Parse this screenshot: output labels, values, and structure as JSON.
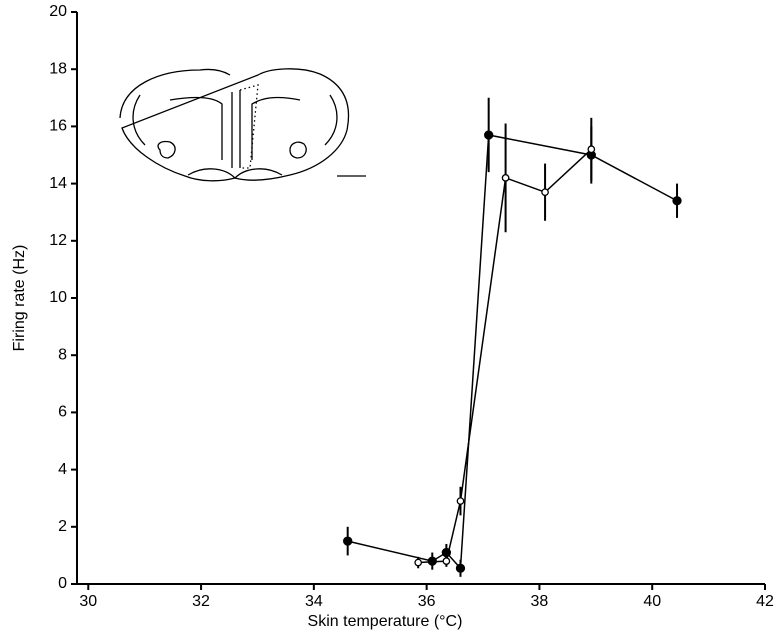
{
  "chart_data": {
    "type": "scatter-line",
    "x_label": "Skin temperature (°C)",
    "y_label": "Firing rate (Hz)",
    "xlim": [
      29.8,
      42
    ],
    "xticks": [
      30,
      32,
      34,
      36,
      38,
      40,
      42
    ],
    "ylim": [
      0,
      20
    ],
    "yticks": [
      0,
      2,
      4,
      6,
      8,
      10,
      12,
      14,
      16,
      18,
      20
    ],
    "series": [
      {
        "marker": "filled",
        "color": "#000000",
        "x": [
          34.6,
          36.1,
          36.35,
          36.6,
          37.1,
          38.92,
          40.44
        ],
        "values": [
          1.5,
          0.8,
          1.1,
          0.55,
          15.7,
          15.0,
          13.4
        ],
        "errors": [
          0.5,
          0.3,
          0.3,
          0.3,
          1.3,
          1.0,
          0.6
        ]
      },
      {
        "marker": "open",
        "color": "#000000",
        "x": [
          35.85,
          36.35,
          36.6,
          37.4,
          38.1,
          38.92
        ],
        "values": [
          0.75,
          0.8,
          2.9,
          14.2,
          13.7,
          15.2
        ],
        "errors": [
          0.2,
          0.2,
          0.5,
          1.9,
          1.0,
          1.1
        ]
      }
    ]
  }
}
